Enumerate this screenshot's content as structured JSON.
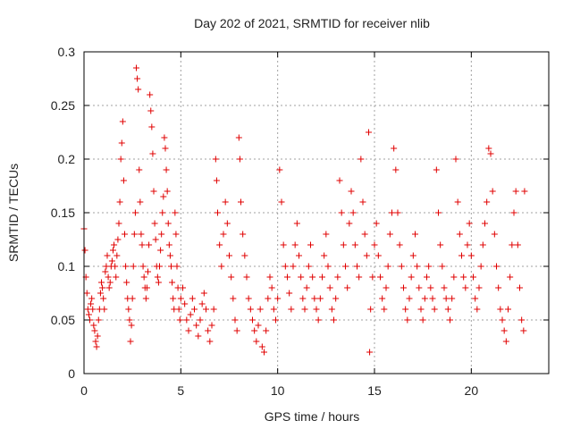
{
  "chart_data": {
    "type": "scatter",
    "title": "Day 202 of 2021, SRMTID for receiver nlib",
    "xlabel": "GPS time / hours",
    "ylabel": "SRMTID / TECUs",
    "xlim": [
      0,
      24
    ],
    "ylim": [
      0,
      0.3
    ],
    "xticks": [
      0,
      5,
      10,
      15,
      20
    ],
    "yticks": [
      0,
      0.05,
      0.1,
      0.15,
      0.2,
      0.25,
      0.3
    ],
    "grid": true,
    "marker": "+",
    "color": "#e00000",
    "points": [
      [
        0.0,
        0.135
      ],
      [
        0.05,
        0.115
      ],
      [
        0.1,
        0.09
      ],
      [
        0.15,
        0.075
      ],
      [
        0.2,
        0.06
      ],
      [
        0.25,
        0.055
      ],
      [
        0.3,
        0.05
      ],
      [
        0.35,
        0.065
      ],
      [
        0.4,
        0.07
      ],
      [
        0.45,
        0.06
      ],
      [
        0.5,
        0.045
      ],
      [
        0.55,
        0.04
      ],
      [
        0.6,
        0.03
      ],
      [
        0.65,
        0.025
      ],
      [
        0.7,
        0.035
      ],
      [
        0.75,
        0.05
      ],
      [
        0.8,
        0.06
      ],
      [
        0.85,
        0.075
      ],
      [
        0.9,
        0.085
      ],
      [
        0.95,
        0.08
      ],
      [
        1.0,
        0.07
      ],
      [
        1.05,
        0.06
      ],
      [
        1.1,
        0.095
      ],
      [
        1.15,
        0.1
      ],
      [
        1.2,
        0.11
      ],
      [
        1.25,
        0.09
      ],
      [
        1.3,
        0.08
      ],
      [
        1.35,
        0.085
      ],
      [
        1.4,
        0.1
      ],
      [
        1.45,
        0.105
      ],
      [
        1.5,
        0.115
      ],
      [
        1.55,
        0.12
      ],
      [
        1.6,
        0.1
      ],
      [
        1.65,
        0.09
      ],
      [
        1.7,
        0.11
      ],
      [
        1.75,
        0.125
      ],
      [
        1.8,
        0.14
      ],
      [
        1.85,
        0.16
      ],
      [
        1.9,
        0.2
      ],
      [
        1.95,
        0.215
      ],
      [
        2.0,
        0.235
      ],
      [
        2.05,
        0.18
      ],
      [
        2.1,
        0.13
      ],
      [
        2.15,
        0.1
      ],
      [
        2.2,
        0.085
      ],
      [
        2.25,
        0.07
      ],
      [
        2.3,
        0.06
      ],
      [
        2.35,
        0.05
      ],
      [
        2.4,
        0.03
      ],
      [
        2.45,
        0.045
      ],
      [
        2.5,
        0.07
      ],
      [
        2.55,
        0.1
      ],
      [
        2.6,
        0.13
      ],
      [
        2.65,
        0.15
      ],
      [
        2.7,
        0.285
      ],
      [
        2.75,
        0.275
      ],
      [
        2.8,
        0.265
      ],
      [
        2.85,
        0.19
      ],
      [
        2.9,
        0.16
      ],
      [
        2.95,
        0.13
      ],
      [
        3.0,
        0.12
      ],
      [
        3.05,
        0.1
      ],
      [
        3.1,
        0.09
      ],
      [
        3.15,
        0.08
      ],
      [
        3.2,
        0.07
      ],
      [
        3.25,
        0.08
      ],
      [
        3.3,
        0.095
      ],
      [
        3.35,
        0.12
      ],
      [
        3.4,
        0.26
      ],
      [
        3.45,
        0.245
      ],
      [
        3.5,
        0.23
      ],
      [
        3.55,
        0.205
      ],
      [
        3.6,
        0.17
      ],
      [
        3.65,
        0.14
      ],
      [
        3.7,
        0.125
      ],
      [
        3.75,
        0.1
      ],
      [
        3.8,
        0.09
      ],
      [
        3.85,
        0.085
      ],
      [
        3.9,
        0.1
      ],
      [
        3.95,
        0.115
      ],
      [
        4.0,
        0.13
      ],
      [
        4.05,
        0.15
      ],
      [
        4.1,
        0.165
      ],
      [
        4.15,
        0.22
      ],
      [
        4.2,
        0.21
      ],
      [
        4.25,
        0.19
      ],
      [
        4.3,
        0.17
      ],
      [
        4.35,
        0.14
      ],
      [
        4.4,
        0.12
      ],
      [
        4.45,
        0.11
      ],
      [
        4.5,
        0.1
      ],
      [
        4.55,
        0.085
      ],
      [
        4.6,
        0.07
      ],
      [
        4.65,
        0.06
      ],
      [
        4.7,
        0.15
      ],
      [
        4.75,
        0.13
      ],
      [
        4.8,
        0.1
      ],
      [
        4.85,
        0.08
      ],
      [
        4.9,
        0.06
      ],
      [
        4.95,
        0.05
      ],
      [
        5.0,
        0.07
      ],
      [
        5.1,
        0.08
      ],
      [
        5.2,
        0.065
      ],
      [
        5.3,
        0.05
      ],
      [
        5.4,
        0.04
      ],
      [
        5.5,
        0.055
      ],
      [
        5.6,
        0.07
      ],
      [
        5.7,
        0.06
      ],
      [
        5.8,
        0.045
      ],
      [
        5.9,
        0.035
      ],
      [
        6.0,
        0.05
      ],
      [
        6.1,
        0.065
      ],
      [
        6.2,
        0.075
      ],
      [
        6.3,
        0.06
      ],
      [
        6.4,
        0.04
      ],
      [
        6.5,
        0.03
      ],
      [
        6.6,
        0.045
      ],
      [
        6.7,
        0.06
      ],
      [
        6.8,
        0.2
      ],
      [
        6.85,
        0.18
      ],
      [
        6.9,
        0.15
      ],
      [
        7.0,
        0.12
      ],
      [
        7.1,
        0.1
      ],
      [
        7.2,
        0.13
      ],
      [
        7.3,
        0.16
      ],
      [
        7.4,
        0.14
      ],
      [
        7.5,
        0.11
      ],
      [
        7.6,
        0.09
      ],
      [
        7.7,
        0.07
      ],
      [
        7.8,
        0.05
      ],
      [
        7.9,
        0.04
      ],
      [
        8.0,
        0.22
      ],
      [
        8.05,
        0.2
      ],
      [
        8.1,
        0.16
      ],
      [
        8.2,
        0.13
      ],
      [
        8.3,
        0.11
      ],
      [
        8.4,
        0.09
      ],
      [
        8.5,
        0.07
      ],
      [
        8.6,
        0.06
      ],
      [
        8.7,
        0.05
      ],
      [
        8.8,
        0.04
      ],
      [
        8.9,
        0.03
      ],
      [
        9.0,
        0.045
      ],
      [
        9.1,
        0.06
      ],
      [
        9.2,
        0.025
      ],
      [
        9.3,
        0.02
      ],
      [
        9.4,
        0.04
      ],
      [
        9.5,
        0.07
      ],
      [
        9.6,
        0.09
      ],
      [
        9.7,
        0.08
      ],
      [
        9.8,
        0.06
      ],
      [
        9.9,
        0.05
      ],
      [
        10.0,
        0.07
      ],
      [
        10.1,
        0.19
      ],
      [
        10.2,
        0.16
      ],
      [
        10.3,
        0.12
      ],
      [
        10.4,
        0.1
      ],
      [
        10.5,
        0.09
      ],
      [
        10.6,
        0.075
      ],
      [
        10.7,
        0.06
      ],
      [
        10.8,
        0.1
      ],
      [
        10.9,
        0.12
      ],
      [
        11.0,
        0.14
      ],
      [
        11.1,
        0.11
      ],
      [
        11.2,
        0.09
      ],
      [
        11.3,
        0.07
      ],
      [
        11.4,
        0.06
      ],
      [
        11.5,
        0.08
      ],
      [
        11.6,
        0.1
      ],
      [
        11.7,
        0.12
      ],
      [
        11.8,
        0.09
      ],
      [
        11.9,
        0.07
      ],
      [
        12.0,
        0.06
      ],
      [
        12.1,
        0.05
      ],
      [
        12.2,
        0.07
      ],
      [
        12.3,
        0.09
      ],
      [
        12.4,
        0.11
      ],
      [
        12.5,
        0.13
      ],
      [
        12.6,
        0.1
      ],
      [
        12.7,
        0.08
      ],
      [
        12.8,
        0.06
      ],
      [
        12.9,
        0.05
      ],
      [
        13.0,
        0.07
      ],
      [
        13.1,
        0.09
      ],
      [
        13.2,
        0.18
      ],
      [
        13.3,
        0.15
      ],
      [
        13.4,
        0.12
      ],
      [
        13.5,
        0.1
      ],
      [
        13.6,
        0.08
      ],
      [
        13.7,
        0.14
      ],
      [
        13.8,
        0.17
      ],
      [
        13.9,
        0.15
      ],
      [
        14.0,
        0.12
      ],
      [
        14.1,
        0.1
      ],
      [
        14.2,
        0.09
      ],
      [
        14.3,
        0.2
      ],
      [
        14.4,
        0.16
      ],
      [
        14.5,
        0.13
      ],
      [
        14.6,
        0.11
      ],
      [
        14.7,
        0.225
      ],
      [
        14.75,
        0.02
      ],
      [
        14.8,
        0.06
      ],
      [
        14.9,
        0.09
      ],
      [
        15.0,
        0.12
      ],
      [
        15.1,
        0.14
      ],
      [
        15.2,
        0.11
      ],
      [
        15.3,
        0.09
      ],
      [
        15.4,
        0.07
      ],
      [
        15.5,
        0.06
      ],
      [
        15.6,
        0.08
      ],
      [
        15.7,
        0.1
      ],
      [
        15.8,
        0.13
      ],
      [
        15.9,
        0.15
      ],
      [
        16.0,
        0.21
      ],
      [
        16.1,
        0.19
      ],
      [
        16.2,
        0.15
      ],
      [
        16.3,
        0.12
      ],
      [
        16.4,
        0.1
      ],
      [
        16.5,
        0.08
      ],
      [
        16.6,
        0.06
      ],
      [
        16.7,
        0.05
      ],
      [
        16.8,
        0.07
      ],
      [
        16.9,
        0.09
      ],
      [
        17.0,
        0.11
      ],
      [
        17.1,
        0.13
      ],
      [
        17.2,
        0.1
      ],
      [
        17.3,
        0.08
      ],
      [
        17.4,
        0.06
      ],
      [
        17.5,
        0.05
      ],
      [
        17.6,
        0.07
      ],
      [
        17.7,
        0.09
      ],
      [
        17.8,
        0.1
      ],
      [
        17.9,
        0.08
      ],
      [
        18.0,
        0.07
      ],
      [
        18.1,
        0.06
      ],
      [
        18.2,
        0.19
      ],
      [
        18.3,
        0.15
      ],
      [
        18.4,
        0.12
      ],
      [
        18.5,
        0.1
      ],
      [
        18.6,
        0.08
      ],
      [
        18.7,
        0.07
      ],
      [
        18.8,
        0.06
      ],
      [
        18.9,
        0.05
      ],
      [
        19.0,
        0.07
      ],
      [
        19.1,
        0.09
      ],
      [
        19.2,
        0.2
      ],
      [
        19.3,
        0.16
      ],
      [
        19.4,
        0.13
      ],
      [
        19.5,
        0.11
      ],
      [
        19.6,
        0.09
      ],
      [
        19.7,
        0.08
      ],
      [
        19.8,
        0.12
      ],
      [
        19.9,
        0.14
      ],
      [
        20.0,
        0.11
      ],
      [
        20.1,
        0.09
      ],
      [
        20.2,
        0.07
      ],
      [
        20.3,
        0.06
      ],
      [
        20.4,
        0.08
      ],
      [
        20.5,
        0.1
      ],
      [
        20.6,
        0.12
      ],
      [
        20.7,
        0.14
      ],
      [
        20.8,
        0.16
      ],
      [
        20.9,
        0.21
      ],
      [
        21.0,
        0.205
      ],
      [
        21.1,
        0.17
      ],
      [
        21.2,
        0.13
      ],
      [
        21.3,
        0.1
      ],
      [
        21.4,
        0.08
      ],
      [
        21.5,
        0.06
      ],
      [
        21.6,
        0.05
      ],
      [
        21.7,
        0.04
      ],
      [
        21.8,
        0.03
      ],
      [
        21.9,
        0.06
      ],
      [
        22.0,
        0.09
      ],
      [
        22.1,
        0.12
      ],
      [
        22.2,
        0.15
      ],
      [
        22.3,
        0.17
      ],
      [
        22.4,
        0.12
      ],
      [
        22.5,
        0.08
      ],
      [
        22.6,
        0.05
      ],
      [
        22.7,
        0.04
      ],
      [
        22.75,
        0.17
      ]
    ]
  }
}
